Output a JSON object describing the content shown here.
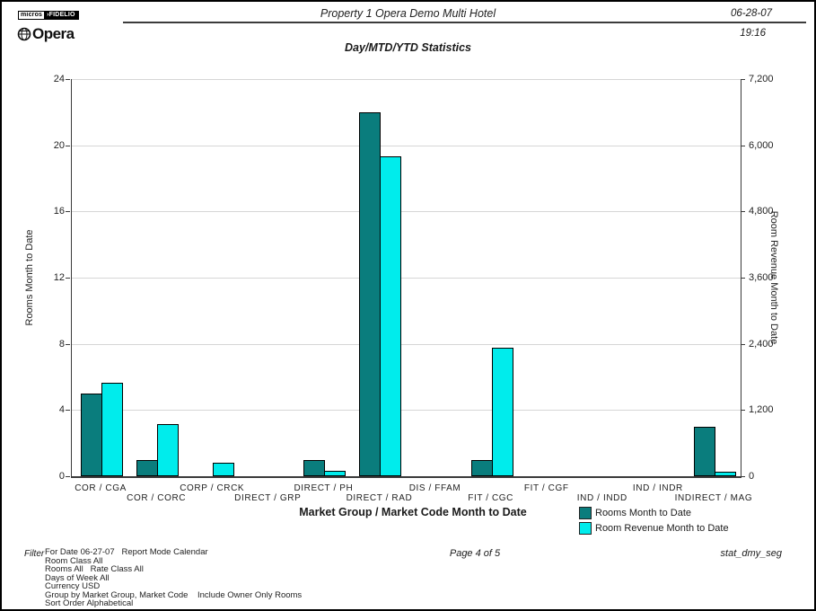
{
  "header": {
    "logo_micros": "micros",
    "logo_fidelio": "›FIDELIO",
    "logo_opera": "Opera",
    "title": "Property 1 Opera Demo Multi Hotel",
    "date": "06-28-07",
    "time": "19:16"
  },
  "chart_data": {
    "type": "bar",
    "title": "Day/MTD/YTD Statistics",
    "categories": [
      "COR / CGA",
      "COR / CORC",
      "CORP / CRCK",
      "DIRECT / GRP",
      "DIRECT / PH",
      "DIRECT / RAD",
      "DIS / FFAM",
      "FIT / CGC",
      "FIT / CGF",
      "IND / INDD",
      "IND / INDR",
      "INDIRECT / MAG"
    ],
    "series": [
      {
        "name": "Rooms Month to Date",
        "axis": "left",
        "color": "#0a7d7d",
        "values": [
          5,
          1,
          0,
          0,
          1,
          22,
          0,
          1,
          0,
          0,
          0,
          3
        ]
      },
      {
        "name": "Room Revenue Month to Date",
        "axis": "right",
        "color": "#00ecec",
        "values": [
          1700,
          940,
          250,
          0,
          100,
          5800,
          0,
          2330,
          0,
          0,
          0,
          80
        ]
      }
    ],
    "left_axis": {
      "label": "Rooms Month to Date",
      "ylim": [
        0,
        24
      ],
      "ticks": [
        0,
        4,
        8,
        12,
        16,
        20,
        24
      ]
    },
    "right_axis": {
      "label": "Room Revenue Month to Date",
      "ylim": [
        0,
        7200
      ],
      "tick_labels": [
        "0",
        "1,200",
        "2,400",
        "3,600",
        "4,800",
        "6,000",
        "7,200"
      ]
    },
    "xlabel": "Market Group / Market Code Month to Date",
    "grid": true,
    "legend_position": "bottom-right"
  },
  "legend": {
    "items": [
      {
        "label": "Rooms Month to Date",
        "color": "#0a7d7d"
      },
      {
        "label": "Room Revenue Month to Date",
        "color": "#00ecec"
      }
    ]
  },
  "footer": {
    "filter_label": "Filter",
    "filter_lines": [
      "For Date 06-27-07   Report Mode Calendar",
      "Room Class All",
      "Rooms All   Rate Class All",
      "Days of Week All",
      "Currency USD",
      "Group by Market Group, Market Code    Include Owner Only Rooms",
      "Sort Order Alphabetical"
    ],
    "page": "Page 4 of 5",
    "report_code": "stat_dmy_seg"
  }
}
